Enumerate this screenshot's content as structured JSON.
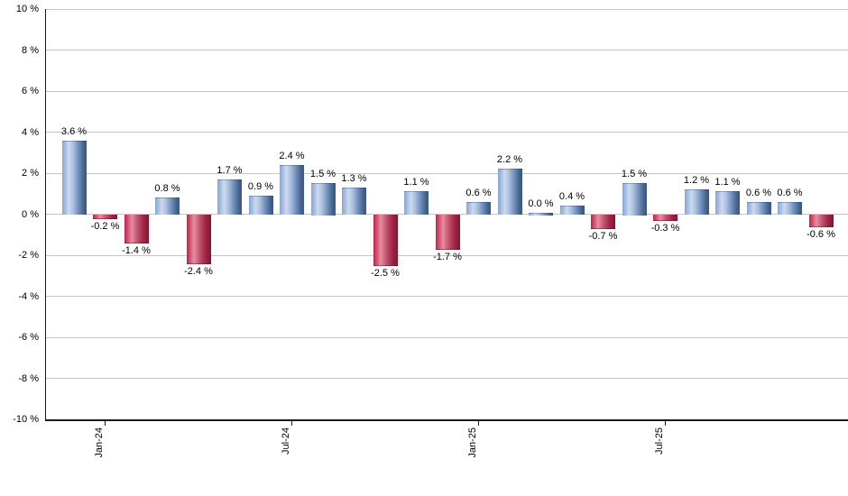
{
  "chart_data": {
    "type": "bar",
    "title": "",
    "unit": "%",
    "values": [
      3.6,
      -0.2,
      -1.4,
      0.8,
      -2.4,
      1.7,
      0.9,
      2.4,
      1.5,
      1.3,
      -2.5,
      1.1,
      -1.7,
      0.6,
      2.2,
      0.0,
      0.4,
      -0.7,
      1.5,
      -0.3,
      1.2,
      1.1,
      0.6,
      0.6,
      -0.6
    ],
    "data_labels": [
      "3.6 %",
      "-0.2 %",
      "-1.4 %",
      "0.8 %",
      "-2.4 %",
      "1.7 %",
      "0.9 %",
      "2.4 %",
      "1.5 %",
      "1.3 %",
      "-2.5 %",
      "1.1 %",
      "-1.7 %",
      "0.6 %",
      "2.2 %",
      "0.0 %",
      "0.4 %",
      "-0.7 %",
      "1.5 %",
      "-0.3 %",
      "1.2 %",
      "1.1 %",
      "0.6 %",
      "0.6 %",
      "-0.6 %"
    ],
    "x_ticks": [
      {
        "bar_index": 1,
        "label": "Jan-24"
      },
      {
        "bar_index": 7,
        "label": "Jul-24"
      },
      {
        "bar_index": 13,
        "label": "Jan-25"
      },
      {
        "bar_index": 19,
        "label": "Jul-25"
      }
    ],
    "y_ticks": [
      {
        "value": 10,
        "label": "10 %"
      },
      {
        "value": 8,
        "label": "8 %"
      },
      {
        "value": 6,
        "label": "6 %"
      },
      {
        "value": 4,
        "label": "4 %"
      },
      {
        "value": 2,
        "label": "2 %"
      },
      {
        "value": 0,
        "label": "0 %"
      },
      {
        "value": -2,
        "label": "-2 %"
      },
      {
        "value": -4,
        "label": "-4 %"
      },
      {
        "value": -6,
        "label": "-6 %"
      },
      {
        "value": -8,
        "label": "-8 %"
      },
      {
        "value": -10,
        "label": "-10 %"
      }
    ],
    "ylim": [
      -10,
      10
    ],
    "grid": true,
    "legend": "none",
    "colors": {
      "positive_gradient": [
        "#84a6d5 0%",
        "#cdd9ee 27%",
        "#a9c0df 45%",
        "#6e8dbc 68%",
        "#466389 88%",
        "#3c5780 100%"
      ],
      "negative_gradient": [
        "#c32047 0%",
        "#e68da2 30%",
        "#c45570 52%",
        "#a4284b 75%",
        "#7c1830 100%"
      ],
      "gridline": "#c6c6c6",
      "axis": "#1a1a1a",
      "text": "#000000",
      "background": "#ffffff"
    }
  }
}
